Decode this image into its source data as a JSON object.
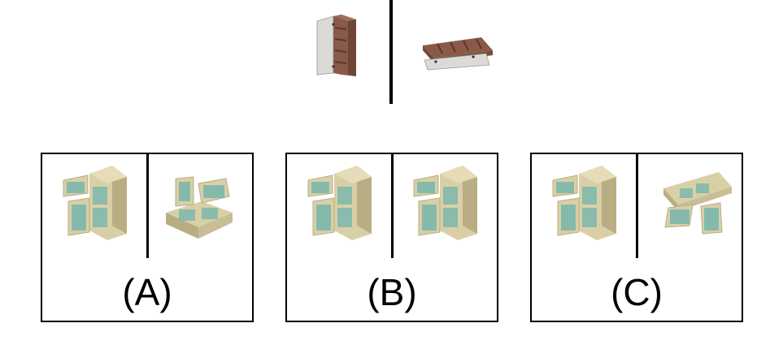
{
  "reference": {
    "left_object": "brown-cabinet-icon",
    "right_object": "brown-cabinet-rotated-icon"
  },
  "options": [
    {
      "label": "(A)",
      "left_object": "fridge-icon",
      "right_object": "fridge-rotated-icon"
    },
    {
      "label": "(B)",
      "left_object": "fridge-icon",
      "right_object": "fridge-icon"
    },
    {
      "label": "(C)",
      "left_object": "fridge-icon",
      "right_object": "fridge-rotated-icon"
    }
  ],
  "colors": {
    "cabinet_wood": "#8a5a48",
    "cabinet_door": "#d8d6d2",
    "fridge_body": "#d9cfa6",
    "fridge_shade": "#b9ad84",
    "fridge_interior": "#6fb4ad",
    "border": "#000000"
  }
}
